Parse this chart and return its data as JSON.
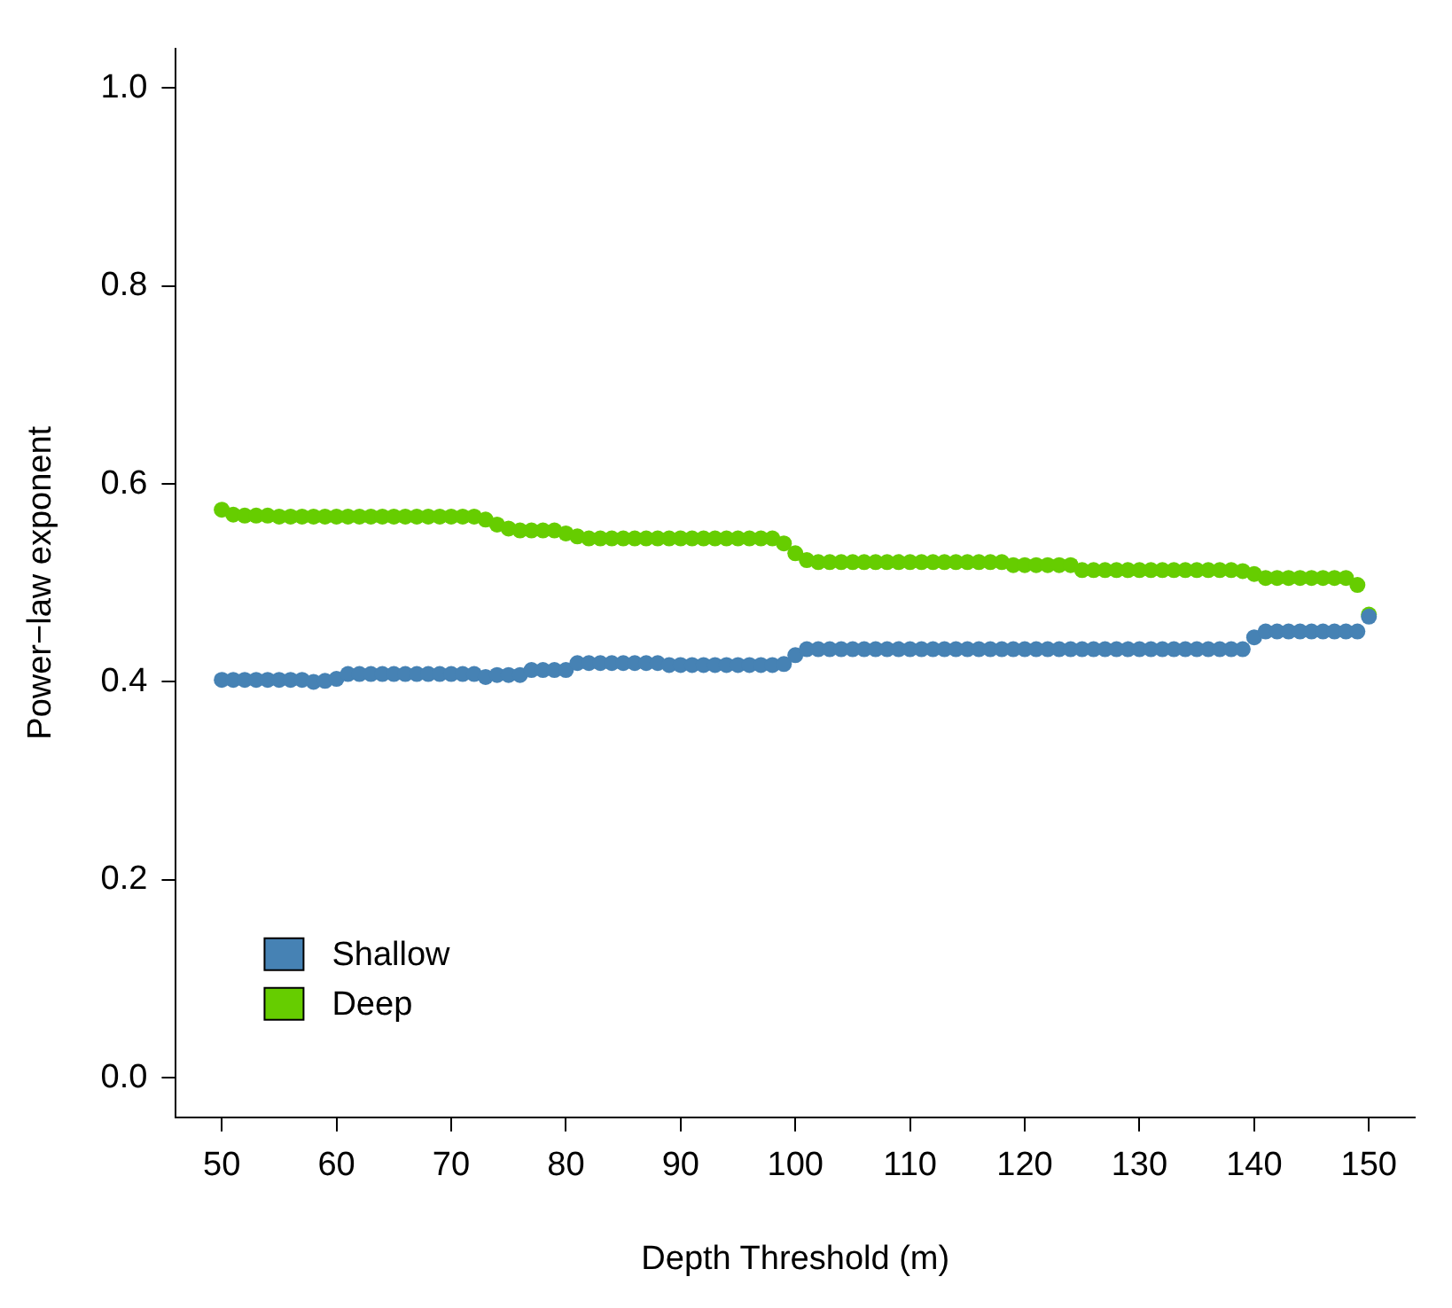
{
  "chart_data": {
    "type": "scatter",
    "xlabel": "Depth Threshold (m)",
    "ylabel": "Power−law exponent",
    "x": [
      50,
      51,
      52,
      53,
      54,
      55,
      56,
      57,
      58,
      59,
      60,
      61,
      62,
      63,
      64,
      65,
      66,
      67,
      68,
      69,
      70,
      71,
      72,
      73,
      74,
      75,
      76,
      77,
      78,
      79,
      80,
      81,
      82,
      83,
      84,
      85,
      86,
      87,
      88,
      89,
      90,
      91,
      92,
      93,
      94,
      95,
      96,
      97,
      98,
      99,
      100,
      101,
      102,
      103,
      104,
      105,
      106,
      107,
      108,
      109,
      110,
      111,
      112,
      113,
      114,
      115,
      116,
      117,
      118,
      119,
      120,
      121,
      122,
      123,
      124,
      125,
      126,
      127,
      128,
      129,
      130,
      131,
      132,
      133,
      134,
      135,
      136,
      137,
      138,
      139,
      140,
      141,
      142,
      143,
      144,
      145,
      146,
      147,
      148,
      149,
      150
    ],
    "series": [
      {
        "name": "Shallow",
        "color": "#4682b4",
        "values": [
          0.402,
          0.402,
          0.402,
          0.402,
          0.402,
          0.402,
          0.402,
          0.402,
          0.4,
          0.401,
          0.403,
          0.408,
          0.408,
          0.408,
          0.408,
          0.408,
          0.408,
          0.408,
          0.408,
          0.408,
          0.408,
          0.408,
          0.408,
          0.405,
          0.407,
          0.407,
          0.407,
          0.412,
          0.412,
          0.412,
          0.412,
          0.419,
          0.419,
          0.419,
          0.419,
          0.419,
          0.419,
          0.419,
          0.419,
          0.417,
          0.417,
          0.417,
          0.417,
          0.417,
          0.417,
          0.417,
          0.417,
          0.417,
          0.417,
          0.418,
          0.427,
          0.433,
          0.433,
          0.433,
          0.433,
          0.433,
          0.433,
          0.433,
          0.433,
          0.433,
          0.433,
          0.433,
          0.433,
          0.433,
          0.433,
          0.433,
          0.433,
          0.433,
          0.433,
          0.433,
          0.433,
          0.433,
          0.433,
          0.433,
          0.433,
          0.433,
          0.433,
          0.433,
          0.433,
          0.433,
          0.433,
          0.433,
          0.433,
          0.433,
          0.433,
          0.433,
          0.433,
          0.433,
          0.433,
          0.433,
          0.445,
          0.451,
          0.451,
          0.451,
          0.451,
          0.451,
          0.451,
          0.451,
          0.451,
          0.451,
          0.466
        ]
      },
      {
        "name": "Deep",
        "color": "#66cd00",
        "values": [
          0.574,
          0.569,
          0.568,
          0.568,
          0.568,
          0.567,
          0.567,
          0.567,
          0.567,
          0.567,
          0.567,
          0.567,
          0.567,
          0.567,
          0.567,
          0.567,
          0.567,
          0.567,
          0.567,
          0.567,
          0.567,
          0.567,
          0.567,
          0.564,
          0.559,
          0.555,
          0.553,
          0.553,
          0.553,
          0.553,
          0.55,
          0.547,
          0.545,
          0.545,
          0.545,
          0.545,
          0.545,
          0.545,
          0.545,
          0.545,
          0.545,
          0.545,
          0.545,
          0.545,
          0.545,
          0.545,
          0.545,
          0.545,
          0.545,
          0.54,
          0.53,
          0.523,
          0.521,
          0.521,
          0.521,
          0.521,
          0.521,
          0.521,
          0.521,
          0.521,
          0.521,
          0.521,
          0.521,
          0.521,
          0.521,
          0.521,
          0.521,
          0.521,
          0.521,
          0.518,
          0.518,
          0.518,
          0.518,
          0.518,
          0.518,
          0.513,
          0.513,
          0.513,
          0.513,
          0.513,
          0.513,
          0.513,
          0.513,
          0.513,
          0.513,
          0.513,
          0.513,
          0.513,
          0.513,
          0.512,
          0.509,
          0.505,
          0.505,
          0.505,
          0.505,
          0.505,
          0.505,
          0.505,
          0.505,
          0.498,
          0.468
        ]
      }
    ],
    "xlim": [
      46,
      154
    ],
    "xticks": [
      50,
      60,
      70,
      80,
      90,
      100,
      110,
      120,
      130,
      140,
      150
    ],
    "ylim": [
      -0.04,
      1.04
    ],
    "yticks": [
      {
        "value": 0,
        "label": "0.0"
      },
      0.2,
      0.4,
      0.6,
      0.8,
      {
        "value": 1,
        "label": "1.0"
      }
    ],
    "grid": false,
    "legend": "bottom left",
    "marker": "circle"
  }
}
